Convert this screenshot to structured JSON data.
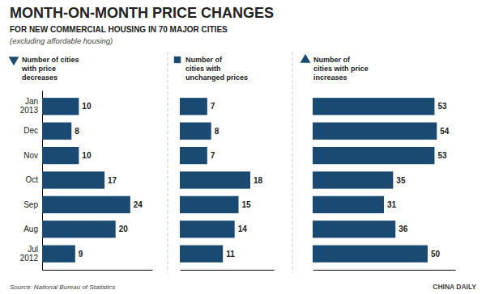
{
  "chart_data": [
    {
      "type": "bar",
      "orientation": "horizontal",
      "title": "MONTH-ON-MONTH PRICE CHANGES",
      "subtitle": "FOR NEW COMMERCIAL HOUSING IN 70 MAJOR CITIES",
      "annotations": [
        "(excluding affordable housing)",
        "Source: National Bureau of Statistics",
        "CHINA DAILY"
      ],
      "categories": [
        "Jan\n2013",
        "Dec",
        "Nov",
        "Oct",
        "Sep",
        "Aug",
        "Jul\n2012"
      ],
      "series": [
        {
          "name": "Number of cities\nwith price\ndecreases",
          "color": "#1a4a72",
          "marker": "triangle-down",
          "values": [
            10,
            8,
            10,
            17,
            24,
            20,
            9
          ]
        }
      ],
      "xlim": [
        0,
        30
      ],
      "data_labels": true,
      "tick_labels": "y"
    },
    {
      "type": "bar",
      "orientation": "horizontal",
      "categories": [
        "Jan\n2013",
        "Dec",
        "Nov",
        "Oct",
        "Sep",
        "Aug",
        "Jul\n2012"
      ],
      "series": [
        {
          "name": "Number of\ncities with\nunchanged prices",
          "color": "#1a4a72",
          "marker": "square",
          "values": [
            7,
            8,
            7,
            18,
            15,
            14,
            11
          ]
        }
      ],
      "xlim": [
        0,
        24
      ],
      "data_labels": true,
      "tick_labels": false
    },
    {
      "type": "bar",
      "orientation": "horizontal",
      "categories": [
        "Jan\n2013",
        "Dec",
        "Nov",
        "Oct",
        "Sep",
        "Aug",
        "Jul\n2012"
      ],
      "series": [
        {
          "name": "Number of\ncities with price\nincreases",
          "color": "#1a4a72",
          "marker": "triangle-up",
          "values": [
            53,
            54,
            53,
            35,
            31,
            36,
            50
          ]
        }
      ],
      "xlim": [
        0,
        62
      ],
      "data_labels": true,
      "tick_labels": false
    }
  ]
}
